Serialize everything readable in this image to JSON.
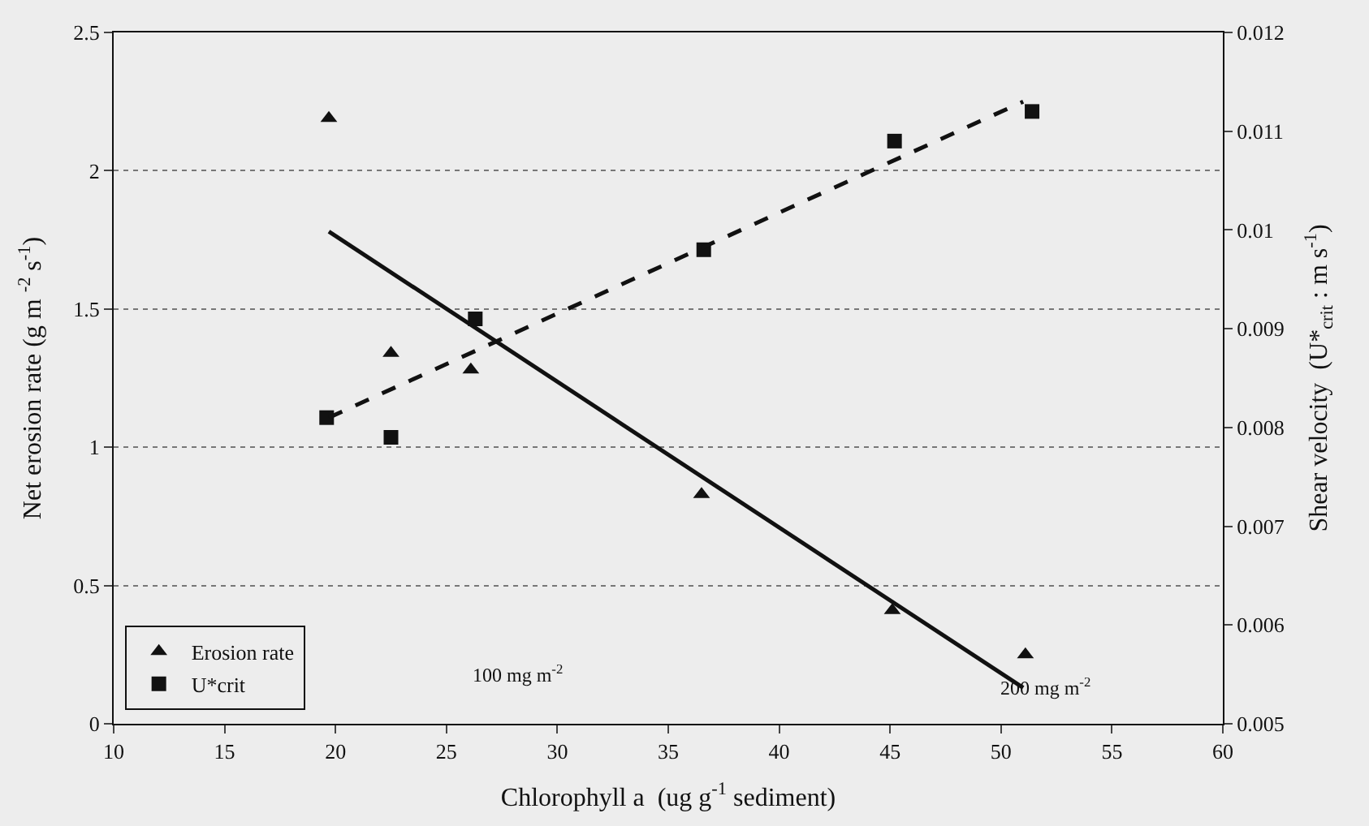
{
  "chart_data": {
    "type": "scatter",
    "xlabel": "Chlorophyll a  (ug g$^{-1}$ sediment)",
    "ylabel": "Net erosion rate (g m $^{-2}$ s$^{-1}$)",
    "y2label": "Shear velocity  (U*$_{crit}$ : m s$^{-1}$)",
    "xlim": [
      10,
      60
    ],
    "xticks": [
      10,
      15,
      20,
      25,
      30,
      35,
      40,
      45,
      50,
      55,
      60
    ],
    "ylim": [
      0,
      2.5
    ],
    "yticks": [
      0,
      0.5,
      1,
      1.5,
      2,
      2.5
    ],
    "y2lim": [
      0.005,
      0.012
    ],
    "y2ticks": [
      0.005,
      0.006,
      0.007,
      0.008,
      0.009,
      0.01,
      0.011,
      0.012
    ],
    "grid": "y",
    "legend": "bottom left",
    "series": [
      {
        "name": "Erosion rate",
        "marker": "triangle",
        "color": "#111111",
        "x": [
          19.7,
          22.5,
          26.1,
          36.5,
          45.1,
          51.1
        ],
        "values": [
          2.19,
          1.34,
          1.28,
          0.83,
          0.41,
          0.25
        ]
      },
      {
        "name": "U*crit",
        "marker": "square",
        "axis": "y2",
        "color": "#111111",
        "x": [
          19.6,
          22.5,
          26.3,
          36.6,
          45.2,
          51.4
        ],
        "values": [
          0.0081,
          0.0079,
          0.0091,
          0.0098,
          0.0109,
          0.0112
        ]
      },
      {
        "type": "line",
        "line_style": "solid",
        "marker": "none",
        "color": "#111111",
        "x": [
          19.7,
          51.0
        ],
        "values": [
          1.78,
          0.13
        ]
      },
      {
        "type": "line",
        "line_style": "dashed",
        "marker": "none",
        "axis": "y2",
        "color": "#111111",
        "x": [
          19.7,
          51.0
        ],
        "values": [
          0.0081,
          0.0113
        ]
      }
    ],
    "annotations": [
      "100 mg m$^{-2}$",
      "200 mg m$^{-2}$"
    ]
  }
}
